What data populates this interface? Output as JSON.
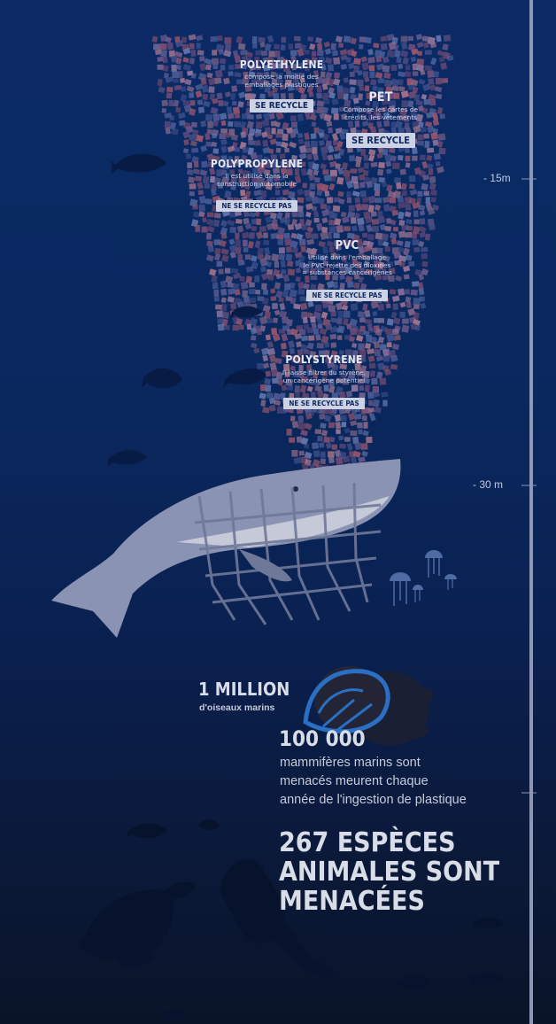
{
  "plastics": [
    {
      "name": "POLYETHYLENE",
      "desc_lines": [
        "compose la moitié des",
        "emballages plastiques"
      ],
      "status": "SE RECYCLE"
    },
    {
      "name": "PET",
      "desc_lines": [
        "Compose les cartes de",
        "crédits, les vêtements"
      ],
      "status": "SE RECYCLE"
    },
    {
      "name": "POLYPROPYLENE",
      "desc_lines": [
        "Il est utilisé dans la",
        "construction automobile"
      ],
      "status": "NE SE RECYCLE PAS"
    },
    {
      "name": "PVC",
      "desc_lines": [
        "Utilisé dans l'emballage",
        "le PVC rejette des dioxines",
        "= substances cancérigènes"
      ],
      "status": "NE SE RECYCLE PAS"
    },
    {
      "name": "POLYSTYRENE",
      "desc_lines": [
        "Il laisse filtrer du styrène,",
        "un cancérigène potentiel"
      ],
      "status": "NE SE RECYCLE PAS"
    }
  ],
  "depth_scale": {
    "mark_15": "- 15m",
    "mark_30": "- 30 m"
  },
  "stats": {
    "birds_number": "1 MILLION",
    "birds_label": "d'oiseaux marins",
    "mammals_number": "100 000",
    "mammals_lines": [
      "mammifères marins sont",
      "menacés meurent chaque",
      "année de l'ingestion de plastique"
    ],
    "species_lines": [
      "267 ESPÈCES",
      "ANIMALES SONT",
      "MENACÉES"
    ]
  },
  "colors": {
    "ocean_top": "#0b2a66",
    "ocean_bottom": "#0a1428",
    "whale": "#8a93b3",
    "badge": "#cdd3e4",
    "mosaic_a": "#6e5a8c",
    "mosaic_b": "#8c6a8a",
    "silhouette": "#07132c"
  }
}
